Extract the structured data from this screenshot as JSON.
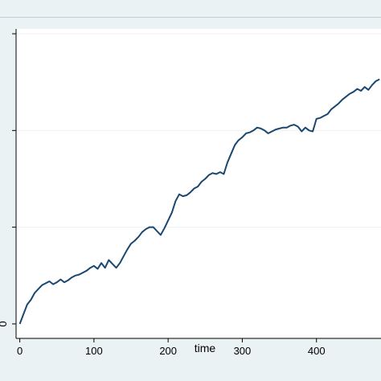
{
  "colors": {
    "background": "#eaf2f3",
    "plot_background": "#ffffff",
    "line": "#1a476f",
    "grid": "#eaf2f3"
  },
  "chart_data": {
    "type": "line",
    "xlabel": "time",
    "ylabel": "",
    "xlim": [
      -5,
      487
    ],
    "ylim": [
      -0.15,
      3.05
    ],
    "x_ticks": [
      0,
      100,
      200,
      300,
      400
    ],
    "x_tick_labels": [
      "0",
      "100",
      "200",
      "300",
      "400"
    ],
    "y_ticks": [
      0,
      1,
      2,
      3
    ],
    "y_tick_labels": [
      "0",
      "",
      "",
      ""
    ],
    "grid": true,
    "series": [
      {
        "x": [
          0,
          5,
          10,
          15,
          20,
          25,
          30,
          35,
          40,
          45,
          50,
          55,
          60,
          65,
          70,
          75,
          80,
          85,
          90,
          95,
          100,
          105,
          110,
          115,
          120,
          125,
          130,
          135,
          140,
          145,
          150,
          155,
          160,
          165,
          170,
          175,
          180,
          185,
          190,
          195,
          200,
          205,
          210,
          215,
          220,
          225,
          230,
          235,
          240,
          245,
          250,
          255,
          260,
          265,
          270,
          275,
          280,
          285,
          290,
          295,
          300,
          305,
          310,
          315,
          320,
          325,
          330,
          335,
          340,
          345,
          350,
          355,
          360,
          365,
          370,
          375,
          380,
          385,
          390,
          395,
          400,
          405,
          410,
          415,
          420,
          425,
          430,
          435,
          440,
          445,
          450,
          455,
          460,
          465,
          470,
          475,
          480,
          485
        ],
        "y": [
          0.0,
          0.1,
          0.2,
          0.25,
          0.32,
          0.36,
          0.4,
          0.42,
          0.44,
          0.41,
          0.43,
          0.46,
          0.43,
          0.45,
          0.48,
          0.5,
          0.51,
          0.53,
          0.55,
          0.58,
          0.6,
          0.57,
          0.63,
          0.58,
          0.66,
          0.62,
          0.58,
          0.63,
          0.7,
          0.77,
          0.83,
          0.86,
          0.9,
          0.95,
          0.98,
          1.0,
          1.0,
          0.96,
          0.92,
          0.99,
          1.07,
          1.15,
          1.27,
          1.34,
          1.32,
          1.33,
          1.36,
          1.4,
          1.42,
          1.47,
          1.5,
          1.54,
          1.56,
          1.55,
          1.57,
          1.55,
          1.67,
          1.76,
          1.85,
          1.9,
          1.93,
          1.97,
          1.98,
          2.0,
          2.03,
          2.02,
          2.0,
          1.97,
          1.99,
          2.01,
          2.02,
          2.03,
          2.03,
          2.05,
          2.06,
          2.04,
          1.99,
          2.03,
          2.0,
          1.99,
          2.12,
          2.13,
          2.15,
          2.17,
          2.22,
          2.25,
          2.28,
          2.32,
          2.35,
          2.38,
          2.4,
          2.43,
          2.41,
          2.45,
          2.42,
          2.47,
          2.51,
          2.53
        ]
      }
    ]
  }
}
